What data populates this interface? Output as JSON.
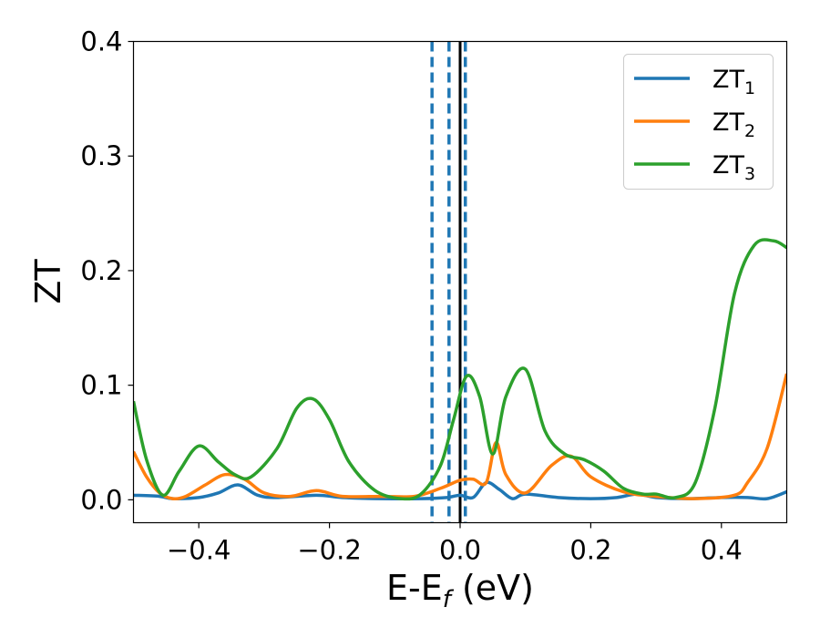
{
  "chart_data": {
    "type": "line",
    "title": "",
    "xlabel": "E-E",
    "xlabel_sub": "f",
    "xlabel_unit": " (eV)",
    "ylabel": "ZT",
    "xlim": [
      -0.5,
      0.5
    ],
    "ylim": [
      -0.02,
      0.4
    ],
    "xticks": [
      -0.4,
      -0.2,
      0.0,
      0.2,
      0.4
    ],
    "xtick_labels": [
      "−0.4",
      "−0.2",
      "0.0",
      "0.2",
      "0.4"
    ],
    "yticks": [
      0.0,
      0.1,
      0.2,
      0.3,
      0.4
    ],
    "ytick_labels": [
      "0.0",
      "0.1",
      "0.2",
      "0.3",
      "0.4"
    ],
    "grid": false,
    "legend_position": "top-right",
    "series": [
      {
        "name": "ZT",
        "name_sub": "1",
        "color": "#1f77b4",
        "x": [
          -0.5,
          -0.46,
          -0.44,
          -0.4,
          -0.37,
          -0.34,
          -0.31,
          -0.28,
          -0.22,
          -0.18,
          -0.12,
          -0.06,
          -0.02,
          0.0,
          0.02,
          0.04,
          0.06,
          0.08,
          0.1,
          0.15,
          0.2,
          0.24,
          0.27,
          0.3,
          0.35,
          0.4,
          0.44,
          0.47,
          0.5
        ],
        "y": [
          0.004,
          0.003,
          0.001,
          0.002,
          0.006,
          0.013,
          0.004,
          0.002,
          0.004,
          0.002,
          0.001,
          0.001,
          0.002,
          0.004,
          0.002,
          0.015,
          0.009,
          0.001,
          0.005,
          0.002,
          0.001,
          0.002,
          0.005,
          0.002,
          0.001,
          0.002,
          0.002,
          0.001,
          0.007
        ]
      },
      {
        "name": "ZT",
        "name_sub": "2",
        "color": "#ff7f0e",
        "x": [
          -0.5,
          -0.48,
          -0.46,
          -0.44,
          -0.42,
          -0.39,
          -0.36,
          -0.33,
          -0.3,
          -0.26,
          -0.22,
          -0.18,
          -0.12,
          -0.07,
          -0.03,
          0.0,
          0.02,
          0.04,
          0.055,
          0.07,
          0.1,
          0.14,
          0.17,
          0.2,
          0.25,
          0.3,
          0.36,
          0.42,
          0.44,
          0.47,
          0.5
        ],
        "y": [
          0.042,
          0.02,
          0.006,
          0.001,
          0.003,
          0.013,
          0.022,
          0.018,
          0.006,
          0.003,
          0.008,
          0.003,
          0.003,
          0.003,
          0.01,
          0.017,
          0.018,
          0.015,
          0.05,
          0.022,
          0.006,
          0.03,
          0.038,
          0.02,
          0.007,
          0.003,
          0.001,
          0.004,
          0.015,
          0.045,
          0.11
        ]
      },
      {
        "name": "ZT",
        "name_sub": "3",
        "color": "#2ca02c",
        "x": [
          -0.5,
          -0.48,
          -0.455,
          -0.43,
          -0.4,
          -0.37,
          -0.345,
          -0.32,
          -0.28,
          -0.25,
          -0.225,
          -0.2,
          -0.17,
          -0.13,
          -0.09,
          -0.06,
          -0.03,
          -0.01,
          0.01,
          0.03,
          0.05,
          0.07,
          0.1,
          0.13,
          0.16,
          0.19,
          0.22,
          0.25,
          0.28,
          0.3,
          0.33,
          0.36,
          0.39,
          0.42,
          0.45,
          0.48,
          0.5
        ],
        "y": [
          0.086,
          0.035,
          0.004,
          0.025,
          0.047,
          0.033,
          0.022,
          0.02,
          0.045,
          0.08,
          0.088,
          0.07,
          0.033,
          0.008,
          0.001,
          0.005,
          0.03,
          0.07,
          0.108,
          0.09,
          0.04,
          0.09,
          0.114,
          0.06,
          0.04,
          0.035,
          0.025,
          0.01,
          0.005,
          0.005,
          0.002,
          0.015,
          0.08,
          0.18,
          0.222,
          0.226,
          0.22
        ]
      }
    ],
    "vertical_lines": [
      {
        "x": -0.043,
        "style": "dashed",
        "color": "#1f77b4"
      },
      {
        "x": -0.017,
        "style": "dashed",
        "color": "#1f77b4"
      },
      {
        "x": 0.008,
        "style": "dashed",
        "color": "#1f77b4"
      },
      {
        "x": 0.0,
        "style": "solid",
        "color": "#000000"
      }
    ]
  }
}
